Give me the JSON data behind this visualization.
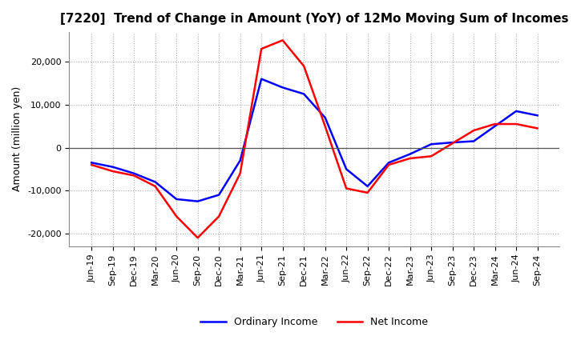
{
  "title": "[7220]  Trend of Change in Amount (YoY) of 12Mo Moving Sum of Incomes",
  "ylabel": "Amount (million yen)",
  "x_labels": [
    "Jun-19",
    "Sep-19",
    "Dec-19",
    "Mar-20",
    "Jun-20",
    "Sep-20",
    "Dec-20",
    "Mar-21",
    "Jun-21",
    "Sep-21",
    "Dec-21",
    "Mar-22",
    "Jun-22",
    "Sep-22",
    "Dec-22",
    "Mar-23",
    "Jun-23",
    "Sep-23",
    "Dec-23",
    "Mar-24",
    "Jun-24",
    "Sep-24"
  ],
  "ordinary_income": [
    -3500,
    -4500,
    -6000,
    -8000,
    -12000,
    -12500,
    -11000,
    -3000,
    16000,
    14000,
    12500,
    7000,
    -5000,
    -9000,
    -3500,
    -1500,
    800,
    1200,
    1500,
    5000,
    8500,
    7500
  ],
  "net_income": [
    -4000,
    -5500,
    -6500,
    -9000,
    -16000,
    -21000,
    -16000,
    -6000,
    23000,
    25000,
    19000,
    5000,
    -9500,
    -10500,
    -4000,
    -2500,
    -2000,
    1000,
    4000,
    5500,
    5500,
    4500
  ],
  "ordinary_income_color": "#0000ff",
  "net_income_color": "#ff0000",
  "ylim": [
    -23000,
    27000
  ],
  "yticks": [
    -20000,
    -10000,
    0,
    10000,
    20000
  ],
  "background_color": "#ffffff",
  "grid_color": "#aaaaaa",
  "title_fontsize": 11,
  "axis_fontsize": 9,
  "tick_fontsize": 8,
  "legend_fontsize": 9
}
